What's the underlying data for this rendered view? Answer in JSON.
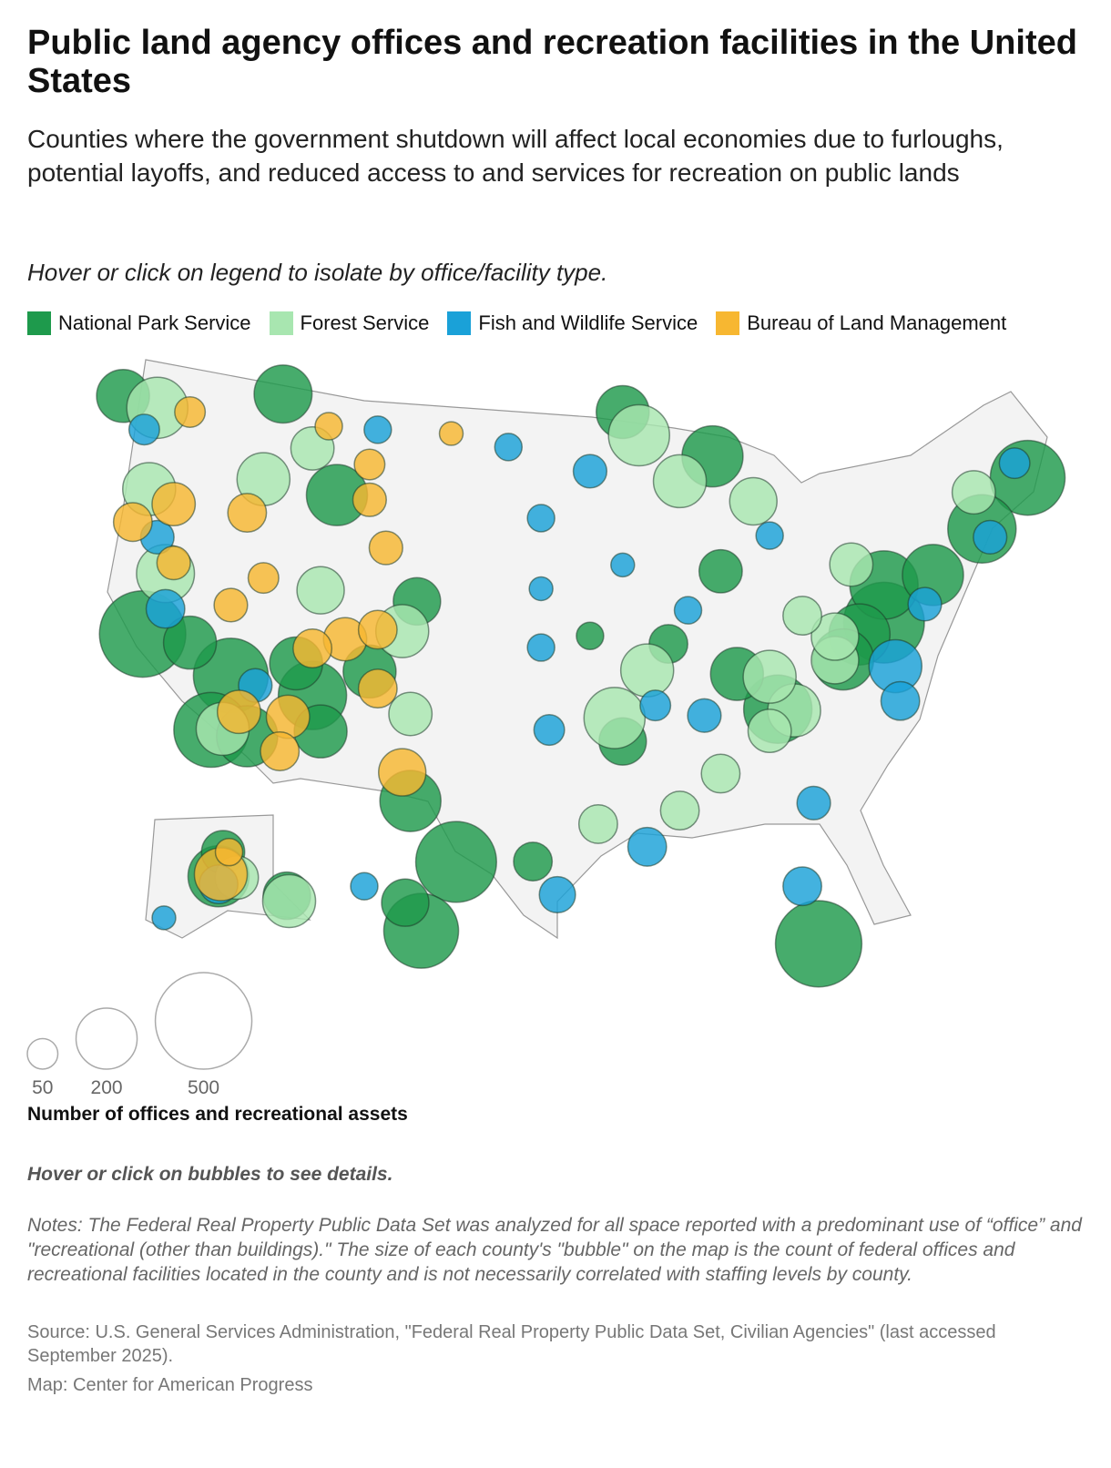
{
  "chart_data": {
    "type": "bubble_map",
    "title": "Public land agency offices and recreation facilities in the United States",
    "subtitle": "Counties where the government shutdown will affect local economies due to furloughs, potential layoffs, and reduced access to and services for recreation on public lands",
    "instruction": "Hover or click on legend to isolate by office/facility type.",
    "hint": "Hover or click on bubbles to see details.",
    "notes": "Notes: The Federal Real Property Public Data Set was analyzed for all space reported with a predominant use of “office” and \"recreational (other than buildings).\" The size of each county's \"bubble\" on the map is the count of federal offices and recreational facilities located in the county and is not necessarily correlated with staffing levels by county.",
    "source": "Source: U.S. General Services Administration, \"Federal Real Property Public Data Set, Civilian Agencies\" (last accessed September 2025).",
    "credit": "Map: Center for American Progress",
    "size_legend": {
      "title": "Number of offices and recreational assets",
      "values": [
        50,
        200,
        500
      ]
    },
    "series": [
      {
        "name": "National Park Service",
        "color": "#1e9a4c",
        "points": [
          {
            "lon": -122.4,
            "lat": 37.8,
            "count": 400
          },
          {
            "lon": -117,
            "lat": 36.5,
            "count": 300
          },
          {
            "lon": -118.2,
            "lat": 34.1,
            "count": 300
          },
          {
            "lon": -81,
            "lat": 25.5,
            "count": 400
          },
          {
            "lon": -103.2,
            "lat": 29.3,
            "count": 350
          },
          {
            "lon": -77,
            "lat": 38.9,
            "count": 350
          },
          {
            "lon": -68.2,
            "lat": 44.3,
            "count": 300
          },
          {
            "lon": -112,
            "lat": 36,
            "count": 250
          },
          {
            "lon": -71,
            "lat": 42.4,
            "count": 250
          },
          {
            "lon": -83.5,
            "lat": 35.6,
            "count": 250
          },
          {
            "lon": -77,
            "lat": 40.5,
            "count": 250
          },
          {
            "lon": -110.5,
            "lat": 44.6,
            "count": 200
          },
          {
            "lon": -106,
            "lat": 31.8,
            "count": 200
          },
          {
            "lon": -74,
            "lat": 40.7,
            "count": 200
          },
          {
            "lon": -78.5,
            "lat": 38.5,
            "count": 200
          },
          {
            "lon": -87.5,
            "lat": 46.5,
            "count": 200
          },
          {
            "lon": -116,
            "lat": 34,
            "count": 200
          },
          {
            "lon": -79.5,
            "lat": 37.5,
            "count": 200
          },
          {
            "lon": -113.8,
            "lat": 48.7,
            "count": 180
          },
          {
            "lon": -119.5,
            "lat": 37.7,
            "count": 150
          },
          {
            "lon": -123.6,
            "lat": 47.8,
            "count": 150
          },
          {
            "lon": -86,
            "lat": 37.2,
            "count": 150
          },
          {
            "lon": -93,
            "lat": 48.5,
            "count": 150
          },
          {
            "lon": -108.5,
            "lat": 37.2,
            "count": 150
          },
          {
            "lon": -113,
            "lat": 37.3,
            "count": 150
          },
          {
            "lon": -111.5,
            "lat": 34.5,
            "count": 150
          },
          {
            "lon": -105.6,
            "lat": 40.3,
            "count": 120
          },
          {
            "lon": -93,
            "lat": 34.5,
            "count": 120
          },
          {
            "lon": -87,
            "lat": 41.6,
            "count": 100
          },
          {
            "lon": -98.5,
            "lat": 29.4,
            "count": 80
          },
          {
            "lon": -90.2,
            "lat": 38.6,
            "count": 80
          },
          {
            "lon": -95,
            "lat": 39,
            "count": 40
          },
          {
            "lon": -155.5,
            "lat": 19.5,
            "count": 300
          },
          {
            "lon": -156.2,
            "lat": 20.7,
            "count": 120
          },
          {
            "lon": -150,
            "lat": 61.2,
            "count": 200
          },
          {
            "lon": -149,
            "lat": 64.8,
            "count": 100
          },
          {
            "lon": -135,
            "lat": 58.3,
            "count": 120
          }
        ]
      },
      {
        "name": "Forest Service",
        "color": "#a8e6b0",
        "points": [
          {
            "lon": -121.5,
            "lat": 47.5,
            "count": 200
          },
          {
            "lon": -93.5,
            "lat": 35.5,
            "count": 200
          },
          {
            "lon": -92,
            "lat": 47.5,
            "count": 200
          },
          {
            "lon": -121,
            "lat": 40.5,
            "count": 180
          },
          {
            "lon": -122,
            "lat": 44,
            "count": 150
          },
          {
            "lon": -115,
            "lat": 45,
            "count": 150
          },
          {
            "lon": -106.5,
            "lat": 39,
            "count": 150
          },
          {
            "lon": -82.5,
            "lat": 35.5,
            "count": 150
          },
          {
            "lon": -84,
            "lat": 37,
            "count": 150
          },
          {
            "lon": -91.5,
            "lat": 37.5,
            "count": 150
          },
          {
            "lon": -89.5,
            "lat": 45.5,
            "count": 150
          },
          {
            "lon": -117.5,
            "lat": 34.2,
            "count": 150
          },
          {
            "lon": -111.5,
            "lat": 40.5,
            "count": 120
          },
          {
            "lon": -80,
            "lat": 37.5,
            "count": 120
          },
          {
            "lon": -85,
            "lat": 44.5,
            "count": 120
          },
          {
            "lon": -80,
            "lat": 38.5,
            "count": 120
          },
          {
            "lon": -112,
            "lat": 46.5,
            "count": 100
          },
          {
            "lon": -71.5,
            "lat": 44,
            "count": 100
          },
          {
            "lon": -84,
            "lat": 34.7,
            "count": 100
          },
          {
            "lon": -106,
            "lat": 35.5,
            "count": 100
          },
          {
            "lon": -79,
            "lat": 41.5,
            "count": 100
          },
          {
            "lon": -87,
            "lat": 33,
            "count": 80
          },
          {
            "lon": -89.5,
            "lat": 31.5,
            "count": 80
          },
          {
            "lon": -94.5,
            "lat": 31,
            "count": 80
          },
          {
            "lon": -82,
            "lat": 39.5,
            "count": 80
          },
          {
            "lon": -134.5,
            "lat": 57.5,
            "count": 150
          },
          {
            "lon": -146,
            "lat": 61,
            "count": 100
          }
        ]
      },
      {
        "name": "Fish and Wildlife Service",
        "color": "#1aa1d8",
        "points": [
          {
            "lon": -76.3,
            "lat": 37,
            "count": 150
          },
          {
            "lon": -91.5,
            "lat": 30,
            "count": 80
          },
          {
            "lon": -82,
            "lat": 28,
            "count": 80
          },
          {
            "lon": -76,
            "lat": 35.5,
            "count": 80
          },
          {
            "lon": -121,
            "lat": 39,
            "count": 80
          },
          {
            "lon": -97,
            "lat": 28,
            "count": 70
          },
          {
            "lon": -81.3,
            "lat": 31.5,
            "count": 60
          },
          {
            "lon": -74.5,
            "lat": 39.5,
            "count": 60
          },
          {
            "lon": -70.5,
            "lat": 42,
            "count": 60
          },
          {
            "lon": -88,
            "lat": 35.5,
            "count": 60
          },
          {
            "lon": -115.5,
            "lat": 36.2,
            "count": 60
          },
          {
            "lon": -121.5,
            "lat": 42,
            "count": 60
          },
          {
            "lon": -95,
            "lat": 46,
            "count": 60
          },
          {
            "lon": -91,
            "lat": 36,
            "count": 50
          },
          {
            "lon": -69,
            "lat": 45,
            "count": 50
          },
          {
            "lon": -97.5,
            "lat": 35,
            "count": 50
          },
          {
            "lon": -122.3,
            "lat": 46.5,
            "count": 50
          },
          {
            "lon": -100,
            "lat": 47,
            "count": 40
          },
          {
            "lon": -98,
            "lat": 44,
            "count": 40
          },
          {
            "lon": -89,
            "lat": 40,
            "count": 40
          },
          {
            "lon": -98,
            "lat": 38.5,
            "count": 40
          },
          {
            "lon": -108,
            "lat": 47.5,
            "count": 40
          },
          {
            "lon": -84,
            "lat": 43,
            "count": 40
          },
          {
            "lon": -98,
            "lat": 41,
            "count": 30
          },
          {
            "lon": -93,
            "lat": 42,
            "count": 30
          },
          {
            "lon": -158,
            "lat": 21.4,
            "count": 40
          },
          {
            "lon": -150,
            "lat": 60,
            "count": 80
          },
          {
            "lon": -162,
            "lat": 55,
            "count": 30
          }
        ]
      },
      {
        "name": "Bureau of Land Management",
        "color": "#f7b731",
        "points": [
          {
            "lon": -106.5,
            "lat": 33,
            "count": 120
          },
          {
            "lon": -120.5,
            "lat": 43.5,
            "count": 100
          },
          {
            "lon": -110,
            "lat": 38.5,
            "count": 100
          },
          {
            "lon": -113.5,
            "lat": 35,
            "count": 100
          },
          {
            "lon": -116.5,
            "lat": 35,
            "count": 100
          },
          {
            "lon": -123,
            "lat": 42.5,
            "count": 80
          },
          {
            "lon": -116,
            "lat": 43.5,
            "count": 80
          },
          {
            "lon": -112,
            "lat": 38,
            "count": 80
          },
          {
            "lon": -108,
            "lat": 39,
            "count": 80
          },
          {
            "lon": -108,
            "lat": 36.5,
            "count": 80
          },
          {
            "lon": -114,
            "lat": 33.5,
            "count": 80
          },
          {
            "lon": -117,
            "lat": 39.5,
            "count": 60
          },
          {
            "lon": -107.5,
            "lat": 42.5,
            "count": 60
          },
          {
            "lon": -108.5,
            "lat": 44.5,
            "count": 60
          },
          {
            "lon": -120.5,
            "lat": 41,
            "count": 60
          },
          {
            "lon": -115,
            "lat": 40.8,
            "count": 50
          },
          {
            "lon": -108.5,
            "lat": 46,
            "count": 50
          },
          {
            "lon": -119.5,
            "lat": 47.5,
            "count": 50
          },
          {
            "lon": -111,
            "lat": 47.5,
            "count": 40
          },
          {
            "lon": -103.5,
            "lat": 47.5,
            "count": 30
          },
          {
            "lon": -149.5,
            "lat": 61.5,
            "count": 150
          },
          {
            "lon": -147.7,
            "lat": 64.8,
            "count": 40
          }
        ]
      }
    ]
  }
}
